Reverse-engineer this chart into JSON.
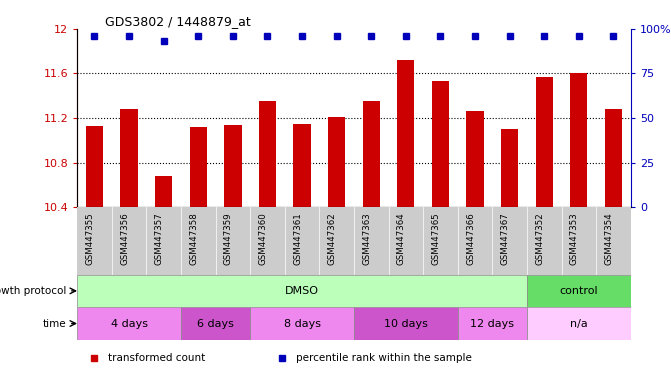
{
  "title": "GDS3802 / 1448879_at",
  "samples": [
    "GSM447355",
    "GSM447356",
    "GSM447357",
    "GSM447358",
    "GSM447359",
    "GSM447360",
    "GSM447361",
    "GSM447362",
    "GSM447363",
    "GSM447364",
    "GSM447365",
    "GSM447366",
    "GSM447367",
    "GSM447352",
    "GSM447353",
    "GSM447354"
  ],
  "bar_values": [
    11.13,
    11.28,
    10.68,
    11.12,
    11.14,
    11.35,
    11.15,
    11.21,
    11.35,
    11.72,
    11.53,
    11.26,
    11.1,
    11.57,
    11.6,
    11.28
  ],
  "percentile_values": [
    100,
    100,
    97,
    100,
    100,
    100,
    100,
    100,
    100,
    100,
    100,
    100,
    100,
    100,
    100,
    100
  ],
  "bar_color": "#CC0000",
  "percentile_color": "#0000BB",
  "ylim_left": [
    10.4,
    12.0
  ],
  "ylim_right": [
    0,
    100
  ],
  "yticks_left": [
    10.4,
    10.8,
    11.2,
    11.6,
    12.0
  ],
  "ytick_labels_left": [
    "10.4",
    "10.8",
    "11.2",
    "11.6",
    "12"
  ],
  "yticks_right": [
    0,
    25,
    50,
    75,
    100
  ],
  "ytick_labels_right": [
    "0",
    "25",
    "50",
    "75",
    "100%"
  ],
  "growth_protocol_groups": [
    {
      "label": "DMSO",
      "start": 0,
      "end": 13,
      "color": "#BBFFBB"
    },
    {
      "label": "control",
      "start": 13,
      "end": 16,
      "color": "#66DD66"
    }
  ],
  "time_groups": [
    {
      "label": "4 days",
      "start": 0,
      "end": 3,
      "color": "#EE88EE"
    },
    {
      "label": "6 days",
      "start": 3,
      "end": 5,
      "color": "#CC55CC"
    },
    {
      "label": "8 days",
      "start": 5,
      "end": 8,
      "color": "#EE88EE"
    },
    {
      "label": "10 days",
      "start": 8,
      "end": 11,
      "color": "#CC55CC"
    },
    {
      "label": "12 days",
      "start": 11,
      "end": 13,
      "color": "#EE88EE"
    },
    {
      "label": "n/a",
      "start": 13,
      "end": 16,
      "color": "#FFCCFF"
    }
  ],
  "growth_protocol_label": "growth protocol",
  "time_label": "time",
  "legend_items": [
    {
      "label": "transformed count",
      "color": "#CC0000",
      "marker": "s"
    },
    {
      "label": "percentile rank within the sample",
      "color": "#0000BB",
      "marker": "s"
    }
  ],
  "dotted_gridlines": [
    10.8,
    11.2,
    11.6
  ],
  "bar_width": 0.5,
  "xticklabel_bg": "#CCCCCC",
  "plot_bg": "#FFFFFF",
  "fig_bg": "#FFFFFF"
}
